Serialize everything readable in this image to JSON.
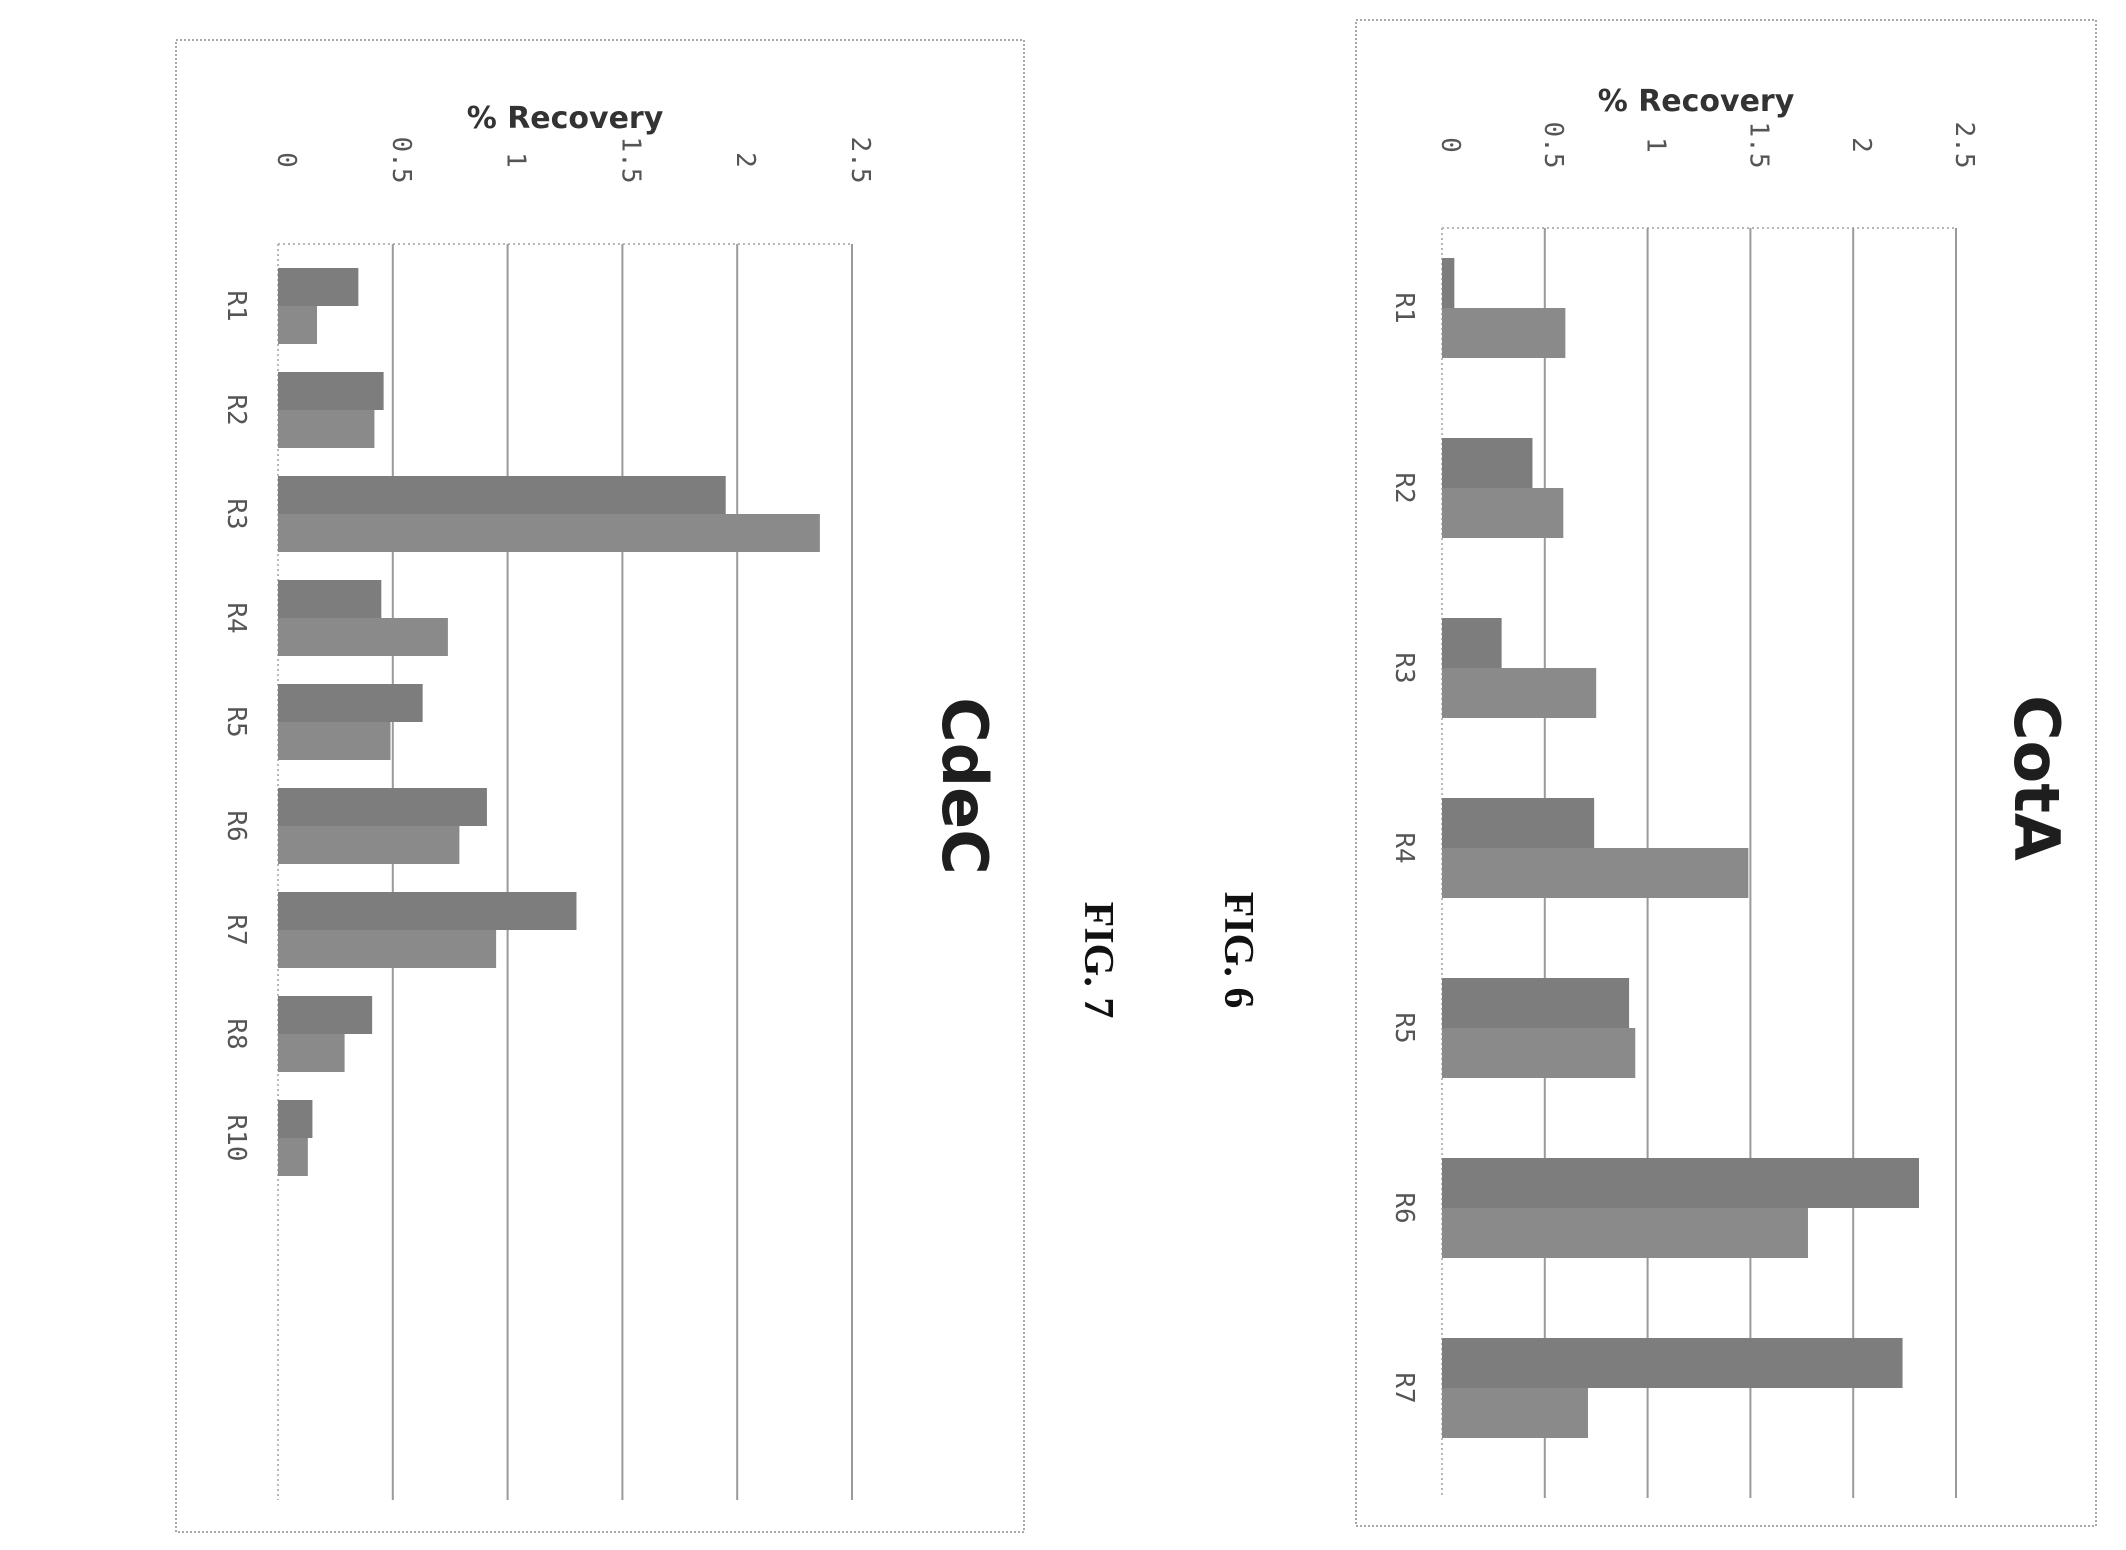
{
  "figures": [
    {
      "id": "fig7",
      "label": "FIG. 7"
    },
    {
      "id": "fig6",
      "label": "FIG. 6"
    }
  ],
  "chart_data": [
    {
      "type": "bar",
      "orientation": "horizontal-rotated",
      "figure": "FIG. 7",
      "title": "CdeC",
      "ylabel": "% Recovery",
      "ylim": [
        0,
        2.5
      ],
      "yticks": [
        "0",
        "0.5",
        "1",
        "1.5",
        "2",
        "2.5"
      ],
      "categories": [
        "R1",
        "R2",
        "R3",
        "R4",
        "R5",
        "R6",
        "R7",
        "R8",
        "R10"
      ],
      "series": [
        {
          "values": [
            0.35,
            0.46,
            1.95,
            0.45,
            0.63,
            0.91,
            1.3,
            0.41,
            0.15
          ]
        },
        {
          "values": [
            0.17,
            0.42,
            2.36,
            0.74,
            0.49,
            0.79,
            0.95,
            0.29,
            0.13
          ]
        }
      ],
      "grid": true,
      "legend": "none"
    },
    {
      "type": "bar",
      "orientation": "horizontal-rotated",
      "figure": "FIG. 6",
      "title": "CotA",
      "ylabel": "% Recovery",
      "ylim": [
        0,
        2.5
      ],
      "yticks": [
        "0",
        "0.5",
        "1",
        "1.5",
        "2",
        "2.5"
      ],
      "categories": [
        "R1",
        "R2",
        "R3",
        "R4",
        "R5",
        "R6",
        "R7"
      ],
      "series": [
        {
          "values": [
            0.06,
            0.44,
            0.29,
            0.74,
            0.91,
            2.32,
            2.24
          ]
        },
        {
          "values": [
            0.6,
            0.59,
            0.75,
            1.49,
            0.94,
            1.78,
            0.71
          ]
        }
      ],
      "grid": true,
      "legend": "none"
    }
  ]
}
